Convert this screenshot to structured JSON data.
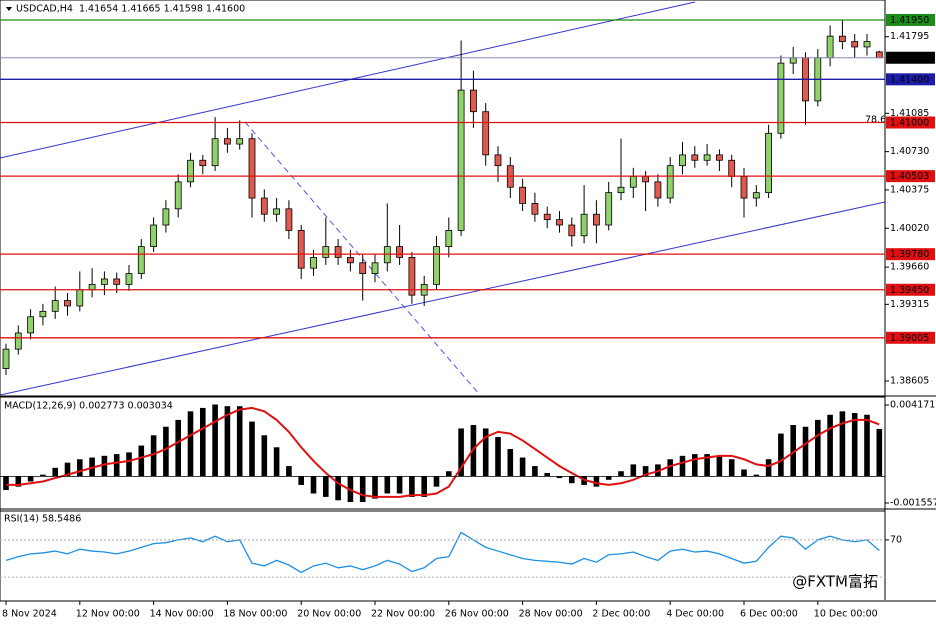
{
  "chart_data": [
    {
      "type": "candlestick",
      "title": "USDCAD,H4  1.41654 1.41665 1.41598 1.41600",
      "categories": [
        "8 Nov 2024",
        null,
        null,
        null,
        null,
        null,
        "12 Nov 00:00",
        null,
        null,
        null,
        null,
        null,
        "14 Nov 00:00",
        null,
        null,
        null,
        null,
        null,
        "18 Nov 00:00",
        null,
        null,
        null,
        null,
        null,
        "20 Nov 00:00",
        null,
        null,
        null,
        null,
        null,
        "22 Nov 00:00",
        null,
        null,
        null,
        null,
        null,
        "26 Nov 00:00",
        null,
        null,
        null,
        null,
        null,
        "28 Nov 00:00",
        null,
        null,
        null,
        null,
        null,
        "2 Dec 00:00",
        null,
        null,
        null,
        null,
        null,
        "4 Dec 00:00",
        null,
        null,
        null,
        null,
        null,
        "6 Dec 00:00",
        null,
        null,
        null,
        null,
        null,
        "10 Dec 00:00",
        null,
        null,
        null,
        null,
        null
      ],
      "open": [
        1.3872,
        1.389,
        1.3905,
        1.392,
        1.3925,
        1.3935,
        1.393,
        1.3945,
        1.395,
        1.3955,
        1.395,
        1.396,
        1.3985,
        1.4005,
        1.402,
        1.4045,
        1.4065,
        1.406,
        1.4085,
        1.408,
        1.4085,
        1.403,
        1.4015,
        1.402,
        1.4,
        1.3965,
        1.3975,
        1.3985,
        1.3975,
        1.397,
        1.396,
        1.397,
        1.3985,
        1.3975,
        1.394,
        1.395,
        1.3985,
        1.4,
        1.413,
        1.411,
        1.407,
        1.406,
        1.404,
        1.4025,
        1.4015,
        1.401,
        1.4005,
        1.3995,
        1.4015,
        1.4005,
        1.4035,
        1.404,
        1.405,
        1.4045,
        1.403,
        1.406,
        1.407,
        1.4065,
        1.407,
        1.4065,
        1.405,
        1.403,
        1.4035,
        1.409,
        1.4155,
        1.416,
        1.412,
        1.416,
        1.418,
        1.4175,
        1.417,
        1.41654
      ],
      "high": [
        1.3895,
        1.3912,
        1.3927,
        1.3932,
        1.3948,
        1.3942,
        1.3962,
        1.3965,
        1.3962,
        1.3961,
        1.3968,
        1.3992,
        1.4012,
        1.4028,
        1.4052,
        1.4072,
        1.407,
        1.4105,
        1.4095,
        1.4102,
        1.409,
        1.4038,
        1.403,
        1.4028,
        1.4005,
        1.3982,
        1.4012,
        1.3992,
        1.3982,
        1.3978,
        1.3978,
        1.4025,
        1.4005,
        1.398,
        1.3958,
        1.3995,
        1.4012,
        1.4176,
        1.4148,
        1.4118,
        1.4078,
        1.4068,
        1.4048,
        1.4035,
        1.4022,
        1.4018,
        1.4012,
        1.4042,
        1.4028,
        1.4045,
        1.4085,
        1.4058,
        1.4055,
        1.4052,
        1.4068,
        1.4082,
        1.4078,
        1.408,
        1.4075,
        1.407,
        1.4058,
        1.4042,
        1.4098,
        1.4162,
        1.417,
        1.4165,
        1.4168,
        1.419,
        1.4195,
        1.4182,
        1.4182,
        1.41665
      ],
      "low": [
        1.3866,
        1.3885,
        1.3899,
        1.3912,
        1.3918,
        1.3921,
        1.3925,
        1.3938,
        1.394,
        1.3942,
        1.3944,
        1.3955,
        1.398,
        1.3998,
        1.4012,
        1.404,
        1.4052,
        1.4055,
        1.4072,
        1.4075,
        1.4012,
        1.4008,
        1.4008,
        1.3992,
        1.3955,
        1.3958,
        1.3968,
        1.3968,
        1.3962,
        1.3935,
        1.3952,
        1.3962,
        1.3968,
        1.3932,
        1.393,
        1.3945,
        1.3975,
        1.3995,
        1.4095,
        1.406,
        1.4045,
        1.403,
        1.4018,
        1.4008,
        1.4002,
        1.3998,
        1.3985,
        1.3988,
        1.3988,
        1.4,
        1.4028,
        1.403,
        1.4018,
        1.4022,
        1.4025,
        1.4052,
        1.4058,
        1.406,
        1.4055,
        1.404,
        1.4012,
        1.4022,
        1.403,
        1.4085,
        1.4145,
        1.4098,
        1.4115,
        1.4152,
        1.4168,
        1.416,
        1.4162,
        1.41598
      ],
      "close": [
        1.389,
        1.3905,
        1.392,
        1.3925,
        1.3935,
        1.393,
        1.3945,
        1.395,
        1.3955,
        1.395,
        1.396,
        1.3985,
        1.4005,
        1.402,
        1.4045,
        1.4065,
        1.406,
        1.4085,
        1.408,
        1.4085,
        1.403,
        1.4015,
        1.402,
        1.4,
        1.3965,
        1.3975,
        1.3985,
        1.3975,
        1.397,
        1.396,
        1.397,
        1.3985,
        1.3975,
        1.394,
        1.395,
        1.3985,
        1.4,
        1.413,
        1.411,
        1.407,
        1.406,
        1.404,
        1.4025,
        1.4015,
        1.401,
        1.4005,
        1.3995,
        1.4015,
        1.4005,
        1.4035,
        1.404,
        1.405,
        1.4045,
        1.403,
        1.406,
        1.407,
        1.4065,
        1.407,
        1.4065,
        1.405,
        1.403,
        1.4035,
        1.409,
        1.4155,
        1.416,
        1.412,
        1.416,
        1.418,
        1.4175,
        1.417,
        1.4175,
        1.416
      ],
      "up_color": "#8fd16b",
      "down_color": "#e05a4f",
      "ylim": [
        1.38475,
        1.42135
      ],
      "yticks": [
        1.41795,
        1.41085,
        {
          "value": 1.4073,
          "label": "1.40730"
        },
        1.40375,
        {
          "value": 1.4002,
          "label": "1.40020"
        },
        {
          "value": 1.3966,
          "label": "1.39660"
        },
        1.39315,
        1.38605
      ],
      "levels": [
        {
          "value": 1.4195,
          "label": "1.41950",
          "color": "#1a8c1a"
        },
        {
          "value": 1.416,
          "label": "1.41600",
          "color": "#000000"
        },
        {
          "value": 1.414,
          "label": "1.41400",
          "color": "#1c1ca8"
        },
        {
          "value": 1.41,
          "label": "1.41000",
          "color": "#e01010"
        },
        {
          "value": 1.40503,
          "label": "1.40503",
          "color": "#e01010"
        },
        {
          "value": 1.3978,
          "label": "1.39780",
          "color": "#e01010"
        },
        {
          "value": 1.3945,
          "label": "1.39450",
          "color": "#e01010"
        },
        {
          "value": 1.39005,
          "label": "1.39005",
          "color": "#e01010"
        }
      ],
      "annotation": "78.6",
      "watermark": "@FXTM富拓"
    },
    {
      "type": "bar",
      "title": "MACD(12,26,9) 0.002773 0.003034",
      "values": [
        -0.0008,
        -0.0006,
        -0.0003,
        0.0001,
        0.0005,
        0.0008,
        0.001,
        0.0011,
        0.0012,
        0.0013,
        0.0014,
        0.0018,
        0.0024,
        0.0029,
        0.0033,
        0.0038,
        0.004,
        0.0042,
        0.0041,
        0.0041,
        0.0032,
        0.0024,
        0.0017,
        0.0006,
        -0.0005,
        -0.001,
        -0.0012,
        -0.0014,
        -0.0015,
        -0.0015,
        -0.0013,
        -0.001,
        -0.001,
        -0.0012,
        -0.0012,
        -0.0006,
        0.0003,
        0.0028,
        0.003,
        0.0028,
        0.0023,
        0.0016,
        0.0011,
        0.0006,
        0.0002,
        -0.0001,
        -0.0004,
        -0.0005,
        -0.0006,
        -0.0002,
        0.0003,
        0.0007,
        0.0006,
        0.0007,
        0.001,
        0.0012,
        0.0013,
        0.0013,
        0.0012,
        0.001,
        0.0004,
        0.0001,
        0.001,
        0.0025,
        0.003,
        0.0029,
        0.0033,
        0.0036,
        0.0038,
        0.0037,
        0.0036,
        0.002773
      ],
      "color": "#000000",
      "signal": {
        "color": "#e01010",
        "values": [
          -0.0005,
          -0.0005,
          -0.0004,
          -0.0003,
          -0.0001,
          0.0001,
          0.0003,
          0.0005,
          0.0007,
          0.0008,
          0.0009,
          0.0011,
          0.0013,
          0.0016,
          0.002,
          0.0024,
          0.0028,
          0.0032,
          0.0036,
          0.0039,
          0.004,
          0.0038,
          0.0033,
          0.0026,
          0.0017,
          0.0009,
          0.0002,
          -0.0004,
          -0.0008,
          -0.0011,
          -0.0012,
          -0.0012,
          -0.0012,
          -0.0011,
          -0.0011,
          -0.001,
          -0.0006,
          0.0005,
          0.0016,
          0.0023,
          0.0026,
          0.0025,
          0.0021,
          0.0016,
          0.0011,
          0.0006,
          0.0002,
          -0.0002,
          -0.0004,
          -0.0005,
          -0.0004,
          -0.0002,
          0.0001,
          0.0003,
          0.0006,
          0.0008,
          0.001,
          0.0011,
          0.0012,
          0.0012,
          0.001,
          0.0007,
          0.0006,
          0.0009,
          0.0014,
          0.0019,
          0.0024,
          0.0028,
          0.0031,
          0.0033,
          0.0033,
          0.003034
        ]
      },
      "ylim": [
        -0.001849,
        0.00458
      ],
      "yticks": [
        0.004171,
        -0.001557
      ]
    },
    {
      "type": "line",
      "title": "RSI(14) 58.5486",
      "values": [
        48,
        52,
        55,
        56,
        58,
        55,
        60,
        58,
        57,
        55,
        58,
        62,
        66,
        67,
        70,
        72,
        68,
        74,
        68,
        70,
        45,
        42,
        48,
        43,
        35,
        42,
        45,
        40,
        42,
        38,
        42,
        48,
        44,
        36,
        40,
        50,
        52,
        78,
        70,
        62,
        58,
        54,
        50,
        48,
        47,
        46,
        44,
        50,
        46,
        54,
        55,
        57,
        52,
        48,
        58,
        60,
        57,
        58,
        55,
        50,
        45,
        47,
        62,
        74,
        72,
        60,
        70,
        74,
        70,
        68,
        70,
        58.5486
      ],
      "color": "#1e90e0",
      "ylim": [
        0,
        100
      ],
      "yticks": [
        70
      ],
      "levels": [
        30
      ]
    }
  ]
}
